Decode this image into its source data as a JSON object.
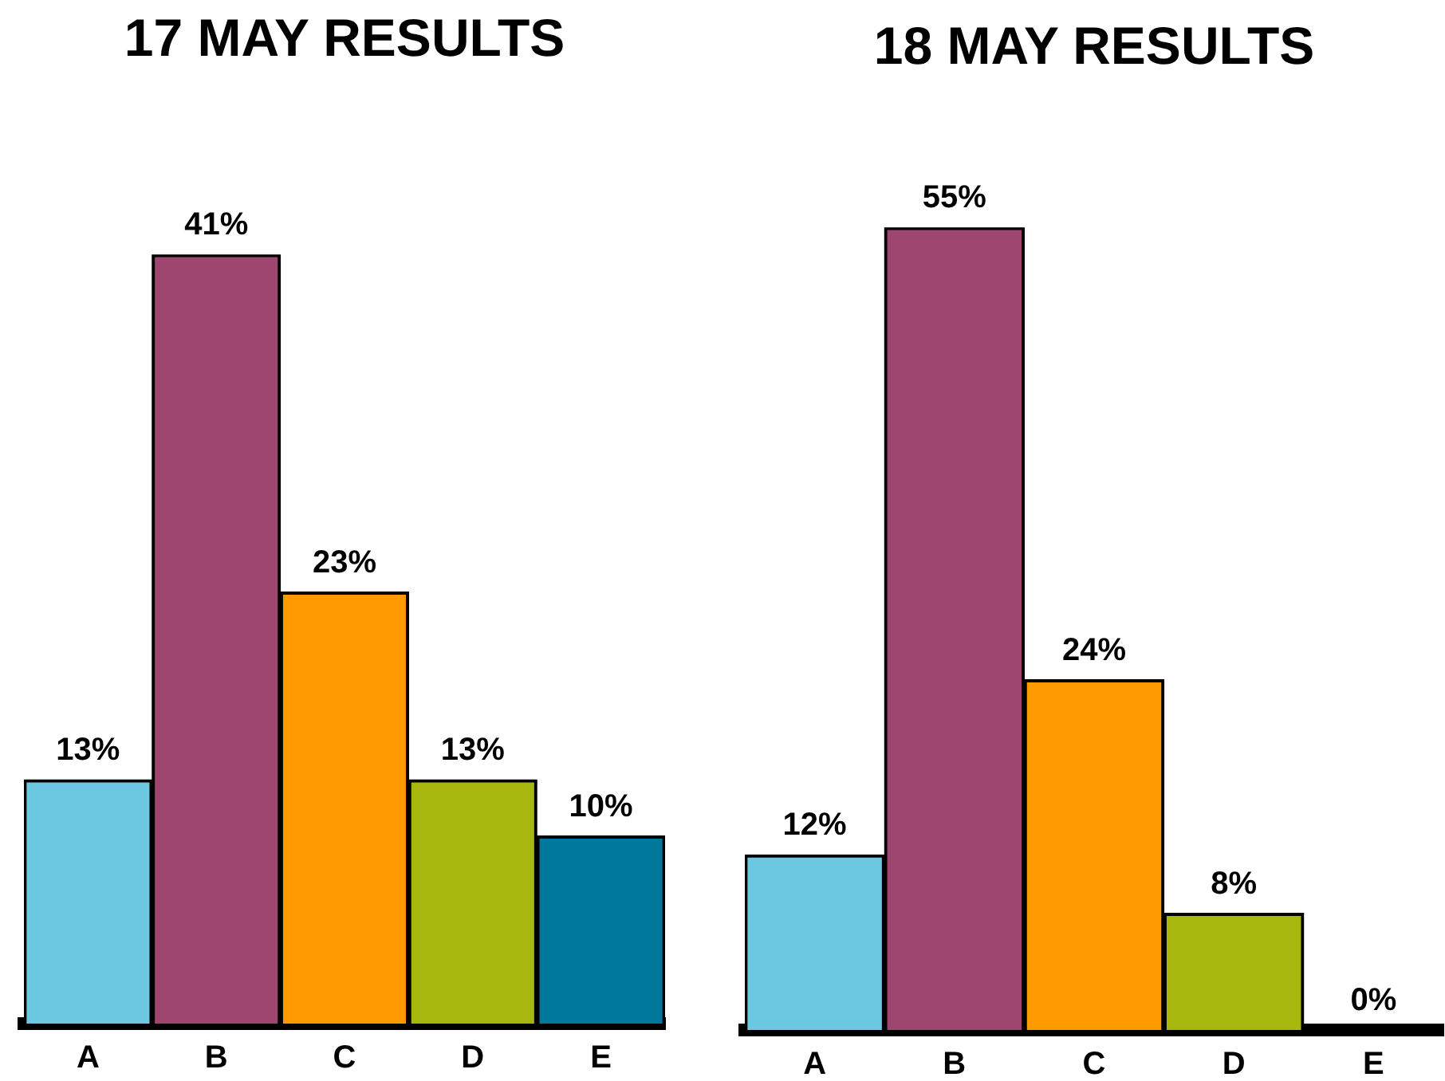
{
  "chart_data": [
    {
      "type": "bar",
      "title": "17 MAY RESULTS",
      "categories": [
        "A",
        "B",
        "C",
        "D",
        "E"
      ],
      "values": [
        13,
        41,
        23,
        13,
        10
      ],
      "colors": [
        "#6cc7e0",
        "#9e466e",
        "#ff9900",
        "#a8b70e",
        "#00789c"
      ],
      "value_labels": [
        "13%",
        "41%",
        "23%",
        "13%",
        "10%"
      ],
      "tick_labels": "x"
    },
    {
      "type": "bar",
      "title": "18 MAY RESULTS",
      "categories": [
        "A",
        "B",
        "C",
        "D",
        "E"
      ],
      "values": [
        12,
        55,
        24,
        8,
        0
      ],
      "colors": [
        "#6cc7e0",
        "#9e466e",
        "#ff9900",
        "#a8b70e",
        "#00789c"
      ],
      "value_labels": [
        "12%",
        "55%",
        "24%",
        "8%",
        "0%"
      ],
      "tick_labels": "x"
    }
  ]
}
